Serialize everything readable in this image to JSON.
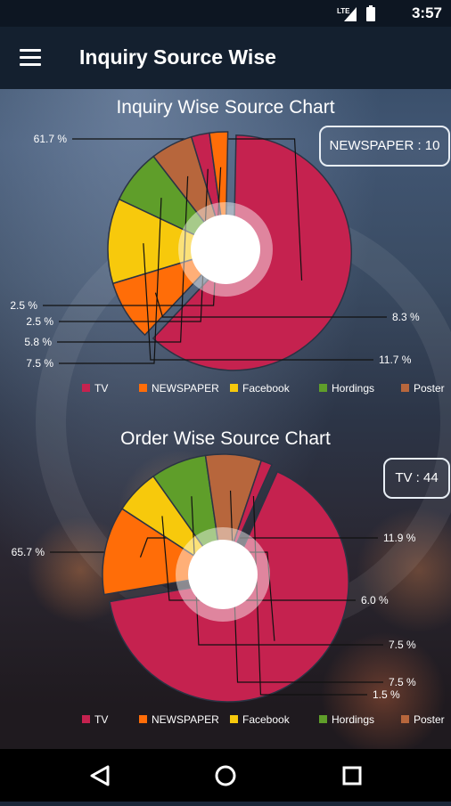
{
  "status": {
    "time": "3:57",
    "network": "LTE"
  },
  "appbar": {
    "title": "Inquiry Source Wise"
  },
  "charts": [
    {
      "title": "Inquiry Wise Source Chart",
      "badge": "NEWSPAPER : 10",
      "slices": [
        {
          "label": "TV",
          "percent": 61.7,
          "color": "#c5224f",
          "pct_text": "61.7 %"
        },
        {
          "label": "NEWSPAPER",
          "percent": 8.3,
          "color": "#ff6d08",
          "pct_text": "8.3 %"
        },
        {
          "label": "Facebook",
          "percent": 11.7,
          "color": "#f7c90c",
          "pct_text": "11.7 %"
        },
        {
          "label": "Hordings",
          "percent": 7.5,
          "color": "#5f9e2a",
          "pct_text": "7.5 %"
        },
        {
          "label": "Poster",
          "percent": 5.8,
          "color": "#b7663c",
          "pct_text": "5.8 %"
        },
        {
          "label": "TV",
          "percent": 2.5,
          "color": "#c5224f",
          "pct_text": "2.5 %"
        },
        {
          "label": "NEWSPAPER",
          "percent": 2.5,
          "color": "#ff6d08",
          "pct_text": "2.5 %"
        }
      ],
      "legend": [
        {
          "label": "TV",
          "color": "#c5224f"
        },
        {
          "label": "NEWSPAPER",
          "color": "#ff6d08"
        },
        {
          "label": "Facebook",
          "color": "#f7c90c"
        },
        {
          "label": "Hordings",
          "color": "#5f9e2a"
        },
        {
          "label": "Poster",
          "color": "#b7663c"
        }
      ]
    },
    {
      "title": "Order Wise Source Chart",
      "badge": "TV : 44",
      "slices": [
        {
          "label": "TV",
          "percent": 65.7,
          "color": "#c5224f",
          "pct_text": "65.7 %"
        },
        {
          "label": "NEWSPAPER",
          "percent": 11.9,
          "color": "#ff6d08",
          "pct_text": "11.9 %"
        },
        {
          "label": "Facebook",
          "percent": 6.0,
          "color": "#f7c90c",
          "pct_text": "6.0 %"
        },
        {
          "label": "Hordings",
          "percent": 7.5,
          "color": "#5f9e2a",
          "pct_text": "7.5 %"
        },
        {
          "label": "Poster",
          "percent": 7.5,
          "color": "#b7663c",
          "pct_text": "7.5 %"
        },
        {
          "label": "TV",
          "percent": 1.5,
          "color": "#c5224f",
          "pct_text": "1.5 %"
        }
      ],
      "legend": [
        {
          "label": "TV",
          "color": "#c5224f"
        },
        {
          "label": "NEWSPAPER",
          "color": "#ff6d08"
        },
        {
          "label": "Facebook",
          "color": "#f7c90c"
        },
        {
          "label": "Hordings",
          "color": "#5f9e2a"
        },
        {
          "label": "Poster",
          "color": "#b7663c"
        }
      ]
    }
  ],
  "navbar": {
    "back_icon": "back-triangle-icon",
    "home_icon": "home-circle-icon",
    "recents_icon": "recents-square-icon"
  }
}
